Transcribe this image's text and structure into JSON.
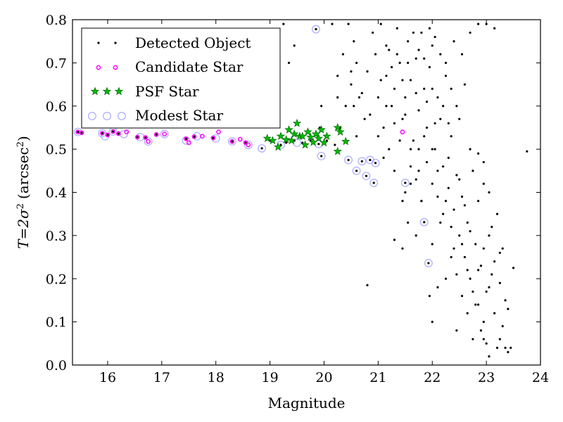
{
  "chart_data": {
    "type": "scatter",
    "xlabel": "Magnitude",
    "ylabel_main": "T=2σ",
    "ylabel_sup": "2",
    "ylabel_unit": "(arcsec",
    "ylabel_unit_sup": "2",
    "ylabel_close": ")",
    "xlim": [
      15.35,
      24
    ],
    "ylim": [
      0.0,
      0.8
    ],
    "xticks": [
      "16",
      "17",
      "18",
      "19",
      "20",
      "21",
      "22",
      "23",
      "24"
    ],
    "yticks": [
      "0.0",
      "0.1",
      "0.2",
      "0.3",
      "0.4",
      "0.5",
      "0.6",
      "0.7",
      "0.8"
    ],
    "grid": false,
    "legend_position": "top-left",
    "legend": [
      "Detected Object",
      "Candidate Star",
      "PSF Star",
      "Modest Star"
    ],
    "colors": {
      "detected": "#000000",
      "candidate": "#ff00ff",
      "psf_fill": "#00bb00",
      "psf_edge": "#006600",
      "modest": "#b0b0ff"
    },
    "series": [
      {
        "name": "Detected Object",
        "marker": "dot",
        "points": [
          [
            15.45,
            0.54
          ],
          [
            15.52,
            0.538
          ],
          [
            15.9,
            0.537
          ],
          [
            16.0,
            0.533
          ],
          [
            16.1,
            0.541
          ],
          [
            16.2,
            0.536
          ],
          [
            16.55,
            0.528
          ],
          [
            16.7,
            0.527
          ],
          [
            16.9,
            0.534
          ],
          [
            17.45,
            0.524
          ],
          [
            17.6,
            0.529
          ],
          [
            17.95,
            0.526
          ],
          [
            18.3,
            0.518
          ],
          [
            18.55,
            0.515
          ],
          [
            18.85,
            0.502
          ],
          [
            19.0,
            0.52
          ],
          [
            19.2,
            0.51
          ],
          [
            19.3,
            0.515
          ],
          [
            19.45,
            0.52
          ],
          [
            19.6,
            0.515
          ],
          [
            19.75,
            0.52
          ],
          [
            19.9,
            0.512
          ],
          [
            19.95,
            0.484
          ],
          [
            20.05,
            0.52
          ],
          [
            20.2,
            0.51
          ],
          [
            20.45,
            0.475
          ],
          [
            20.6,
            0.45
          ],
          [
            20.7,
            0.472
          ],
          [
            20.78,
            0.438
          ],
          [
            20.85,
            0.475
          ],
          [
            20.92,
            0.422
          ],
          [
            20.95,
            0.468
          ],
          [
            21.5,
            0.422
          ],
          [
            21.85,
            0.331
          ],
          [
            21.93,
            0.236
          ],
          [
            19.85,
            0.778
          ],
          [
            19.92,
            0.55
          ],
          [
            20.3,
            0.55
          ],
          [
            20.4,
            0.6
          ],
          [
            20.5,
            0.65
          ],
          [
            20.55,
            0.75
          ],
          [
            20.6,
            0.7
          ],
          [
            20.7,
            0.63
          ],
          [
            20.8,
            0.68
          ],
          [
            20.85,
            0.58
          ],
          [
            20.9,
            0.77
          ],
          [
            20.95,
            0.72
          ],
          [
            21.0,
            0.62
          ],
          [
            21.05,
            0.79
          ],
          [
            21.1,
            0.55
          ],
          [
            21.15,
            0.67
          ],
          [
            21.2,
            0.73
          ],
          [
            21.25,
            0.6
          ],
          [
            21.3,
            0.64
          ],
          [
            21.35,
            0.78
          ],
          [
            21.4,
            0.7
          ],
          [
            21.45,
            0.57
          ],
          [
            21.5,
            0.62
          ],
          [
            21.55,
            0.75
          ],
          [
            21.6,
            0.66
          ],
          [
            21.65,
            0.52
          ],
          [
            21.7,
            0.71
          ],
          [
            21.75,
            0.59
          ],
          [
            21.8,
            0.77
          ],
          [
            21.85,
            0.64
          ],
          [
            21.9,
            0.55
          ],
          [
            21.95,
            0.69
          ],
          [
            22.0,
            0.74
          ],
          [
            22.05,
            0.5
          ],
          [
            22.1,
            0.62
          ],
          [
            22.15,
            0.57
          ],
          [
            22.2,
            0.46
          ],
          [
            22.25,
            0.67
          ],
          [
            22.3,
            0.41
          ],
          [
            22.35,
            0.53
          ],
          [
            22.4,
            0.36
          ],
          [
            22.45,
            0.44
          ],
          [
            22.5,
            0.3
          ],
          [
            22.55,
            0.39
          ],
          [
            22.6,
            0.25
          ],
          [
            22.65,
            0.33
          ],
          [
            22.7,
            0.2
          ],
          [
            22.75,
            0.45
          ],
          [
            22.8,
            0.14
          ],
          [
            22.85,
            0.38
          ],
          [
            22.9,
            0.08
          ],
          [
            22.95,
            0.27
          ],
          [
            23.0,
            0.05
          ],
          [
            23.05,
            0.18
          ],
          [
            23.1,
            0.32
          ],
          [
            23.15,
            0.12
          ],
          [
            23.2,
            0.04
          ],
          [
            23.25,
            0.26
          ],
          [
            23.3,
            0.09
          ],
          [
            23.35,
            0.15
          ],
          [
            23.4,
            0.03
          ],
          [
            23.5,
            0.225
          ],
          [
            23.75,
            0.495
          ],
          [
            21.1,
            0.48
          ],
          [
            21.3,
            0.45
          ],
          [
            21.5,
            0.4
          ],
          [
            21.6,
            0.5
          ],
          [
            21.7,
            0.43
          ],
          [
            21.8,
            0.38
          ],
          [
            21.9,
            0.47
          ],
          [
            22.0,
            0.42
          ],
          [
            22.1,
            0.39
          ],
          [
            22.2,
            0.35
          ],
          [
            22.3,
            0.48
          ],
          [
            22.4,
            0.27
          ],
          [
            22.5,
            0.43
          ],
          [
            22.6,
            0.37
          ],
          [
            22.7,
            0.31
          ],
          [
            22.8,
            0.28
          ],
          [
            22.9,
            0.23
          ],
          [
            23.0,
            0.17
          ],
          [
            23.1,
            0.21
          ],
          [
            22.65,
            0.12
          ],
          [
            22.85,
            0.22
          ],
          [
            22.95,
            0.1
          ],
          [
            22.75,
            0.06
          ],
          [
            21.95,
            0.16
          ],
          [
            22.1,
            0.18
          ],
          [
            22.25,
            0.2
          ],
          [
            20.8,
            0.185
          ],
          [
            21.45,
            0.27
          ],
          [
            21.8,
            0.38
          ],
          [
            22.0,
            0.28
          ],
          [
            22.15,
            0.33
          ],
          [
            22.35,
            0.25
          ],
          [
            22.55,
            0.16
          ],
          [
            22.45,
            0.21
          ],
          [
            23.3,
            0.27
          ],
          [
            23.2,
            0.35
          ],
          [
            23.05,
            0.4
          ],
          [
            22.95,
            0.47
          ],
          [
            21.3,
            0.29
          ],
          [
            21.7,
            0.3
          ],
          [
            22.0,
            0.1
          ],
          [
            22.45,
            0.08
          ],
          [
            20.35,
            0.72
          ],
          [
            20.5,
            0.68
          ],
          [
            20.25,
            0.62
          ],
          [
            20.6,
            0.53
          ],
          [
            20.75,
            0.57
          ],
          [
            21.0,
            0.53
          ],
          [
            21.2,
            0.5
          ],
          [
            21.4,
            0.52
          ],
          [
            21.6,
            0.46
          ],
          [
            21.75,
            0.5
          ],
          [
            21.85,
            0.53
          ],
          [
            22.05,
            0.56
          ],
          [
            22.2,
            0.6
          ],
          [
            22.35,
            0.64
          ],
          [
            22.5,
            0.57
          ],
          [
            22.7,
            0.5
          ],
          [
            22.85,
            0.49
          ],
          [
            22.95,
            0.42
          ],
          [
            23.05,
            0.3
          ],
          [
            23.15,
            0.24
          ],
          [
            23.25,
            0.19
          ],
          [
            23.4,
            0.13
          ],
          [
            23.45,
            0.04
          ],
          [
            21.05,
            0.66
          ],
          [
            21.15,
            0.74
          ],
          [
            21.25,
            0.69
          ],
          [
            21.35,
            0.72
          ],
          [
            21.45,
            0.66
          ],
          [
            21.55,
            0.7
          ],
          [
            21.65,
            0.77
          ],
          [
            21.75,
            0.73
          ],
          [
            21.85,
            0.71
          ],
          [
            21.95,
            0.78
          ],
          [
            22.05,
            0.76
          ],
          [
            22.15,
            0.72
          ],
          [
            22.25,
            0.7
          ],
          [
            22.4,
            0.75
          ],
          [
            22.55,
            0.72
          ],
          [
            22.7,
            0.77
          ],
          [
            22.85,
            0.79
          ],
          [
            23.0,
            0.79
          ],
          [
            23.15,
            0.78
          ],
          [
            22.6,
            0.65
          ],
          [
            22.45,
            0.6
          ],
          [
            22.3,
            0.56
          ],
          [
            22.0,
            0.64
          ],
          [
            21.9,
            0.61
          ],
          [
            21.7,
            0.63
          ],
          [
            21.5,
            0.58
          ],
          [
            21.3,
            0.56
          ],
          [
            21.15,
            0.6
          ],
          [
            18.5,
            0.615
          ],
          [
            19.1,
            0.65
          ],
          [
            19.35,
            0.7
          ],
          [
            19.95,
            0.6
          ],
          [
            19.45,
            0.74
          ],
          [
            19.25,
            0.79
          ],
          [
            20.15,
            0.79
          ],
          [
            20.45,
            0.79
          ],
          [
            20.25,
            0.67
          ],
          [
            20.55,
            0.6
          ],
          [
            20.65,
            0.62
          ],
          [
            21.45,
            0.38
          ],
          [
            21.55,
            0.33
          ],
          [
            21.6,
            0.42
          ],
          [
            21.75,
            0.45
          ],
          [
            22.0,
            0.5
          ],
          [
            22.1,
            0.45
          ],
          [
            22.25,
            0.38
          ],
          [
            22.35,
            0.32
          ],
          [
            22.55,
            0.28
          ],
          [
            22.65,
            0.22
          ],
          [
            22.75,
            0.17
          ],
          [
            22.85,
            0.14
          ],
          [
            22.95,
            0.06
          ],
          [
            23.05,
            0.02
          ],
          [
            23.25,
            0.06
          ],
          [
            23.35,
            0.04
          ]
        ]
      },
      {
        "name": "Candidate Star",
        "marker": "small-circle",
        "points": [
          [
            15.45,
            0.54
          ],
          [
            15.52,
            0.538
          ],
          [
            15.9,
            0.537
          ],
          [
            16.0,
            0.533
          ],
          [
            16.1,
            0.541
          ],
          [
            16.2,
            0.536
          ],
          [
            16.35,
            0.54
          ],
          [
            16.55,
            0.528
          ],
          [
            16.7,
            0.527
          ],
          [
            16.75,
            0.518
          ],
          [
            16.9,
            0.534
          ],
          [
            17.05,
            0.535
          ],
          [
            17.45,
            0.524
          ],
          [
            17.5,
            0.515
          ],
          [
            17.6,
            0.529
          ],
          [
            17.75,
            0.53
          ],
          [
            17.95,
            0.526
          ],
          [
            18.05,
            0.54
          ],
          [
            18.3,
            0.518
          ],
          [
            18.45,
            0.523
          ],
          [
            18.55,
            0.515
          ],
          [
            18.6,
            0.51
          ],
          [
            21.45,
            0.54
          ]
        ]
      },
      {
        "name": "PSF Star",
        "marker": "star",
        "points": [
          [
            18.95,
            0.525
          ],
          [
            19.05,
            0.52
          ],
          [
            19.2,
            0.53
          ],
          [
            19.3,
            0.522
          ],
          [
            19.35,
            0.545
          ],
          [
            19.45,
            0.535
          ],
          [
            19.5,
            0.56
          ],
          [
            19.55,
            0.53
          ],
          [
            19.65,
            0.51
          ],
          [
            19.7,
            0.54
          ],
          [
            19.75,
            0.528
          ],
          [
            19.8,
            0.516
          ],
          [
            19.85,
            0.535
          ],
          [
            19.9,
            0.525
          ],
          [
            19.95,
            0.545
          ],
          [
            20.0,
            0.515
          ],
          [
            20.05,
            0.53
          ],
          [
            20.25,
            0.55
          ],
          [
            20.3,
            0.54
          ],
          [
            20.4,
            0.518
          ],
          [
            20.25,
            0.495
          ],
          [
            19.15,
            0.505
          ],
          [
            19.4,
            0.52
          ],
          [
            19.6,
            0.53
          ]
        ]
      },
      {
        "name": "Modest Star",
        "marker": "open-circle",
        "points": [
          [
            15.45,
            0.54
          ],
          [
            15.9,
            0.537
          ],
          [
            15.95,
            0.53
          ],
          [
            16.1,
            0.541
          ],
          [
            16.3,
            0.535
          ],
          [
            16.6,
            0.528
          ],
          [
            16.75,
            0.518
          ],
          [
            17.05,
            0.535
          ],
          [
            17.45,
            0.52
          ],
          [
            17.65,
            0.53
          ],
          [
            18.0,
            0.525
          ],
          [
            18.3,
            0.518
          ],
          [
            18.6,
            0.51
          ],
          [
            18.85,
            0.502
          ],
          [
            19.2,
            0.51
          ],
          [
            19.5,
            0.515
          ],
          [
            19.9,
            0.512
          ],
          [
            19.95,
            0.484
          ],
          [
            20.45,
            0.475
          ],
          [
            20.6,
            0.45
          ],
          [
            20.7,
            0.472
          ],
          [
            20.78,
            0.438
          ],
          [
            20.85,
            0.475
          ],
          [
            20.92,
            0.422
          ],
          [
            20.95,
            0.468
          ],
          [
            21.5,
            0.422
          ],
          [
            21.85,
            0.331
          ],
          [
            21.93,
            0.236
          ],
          [
            19.85,
            0.778
          ]
        ]
      }
    ]
  }
}
